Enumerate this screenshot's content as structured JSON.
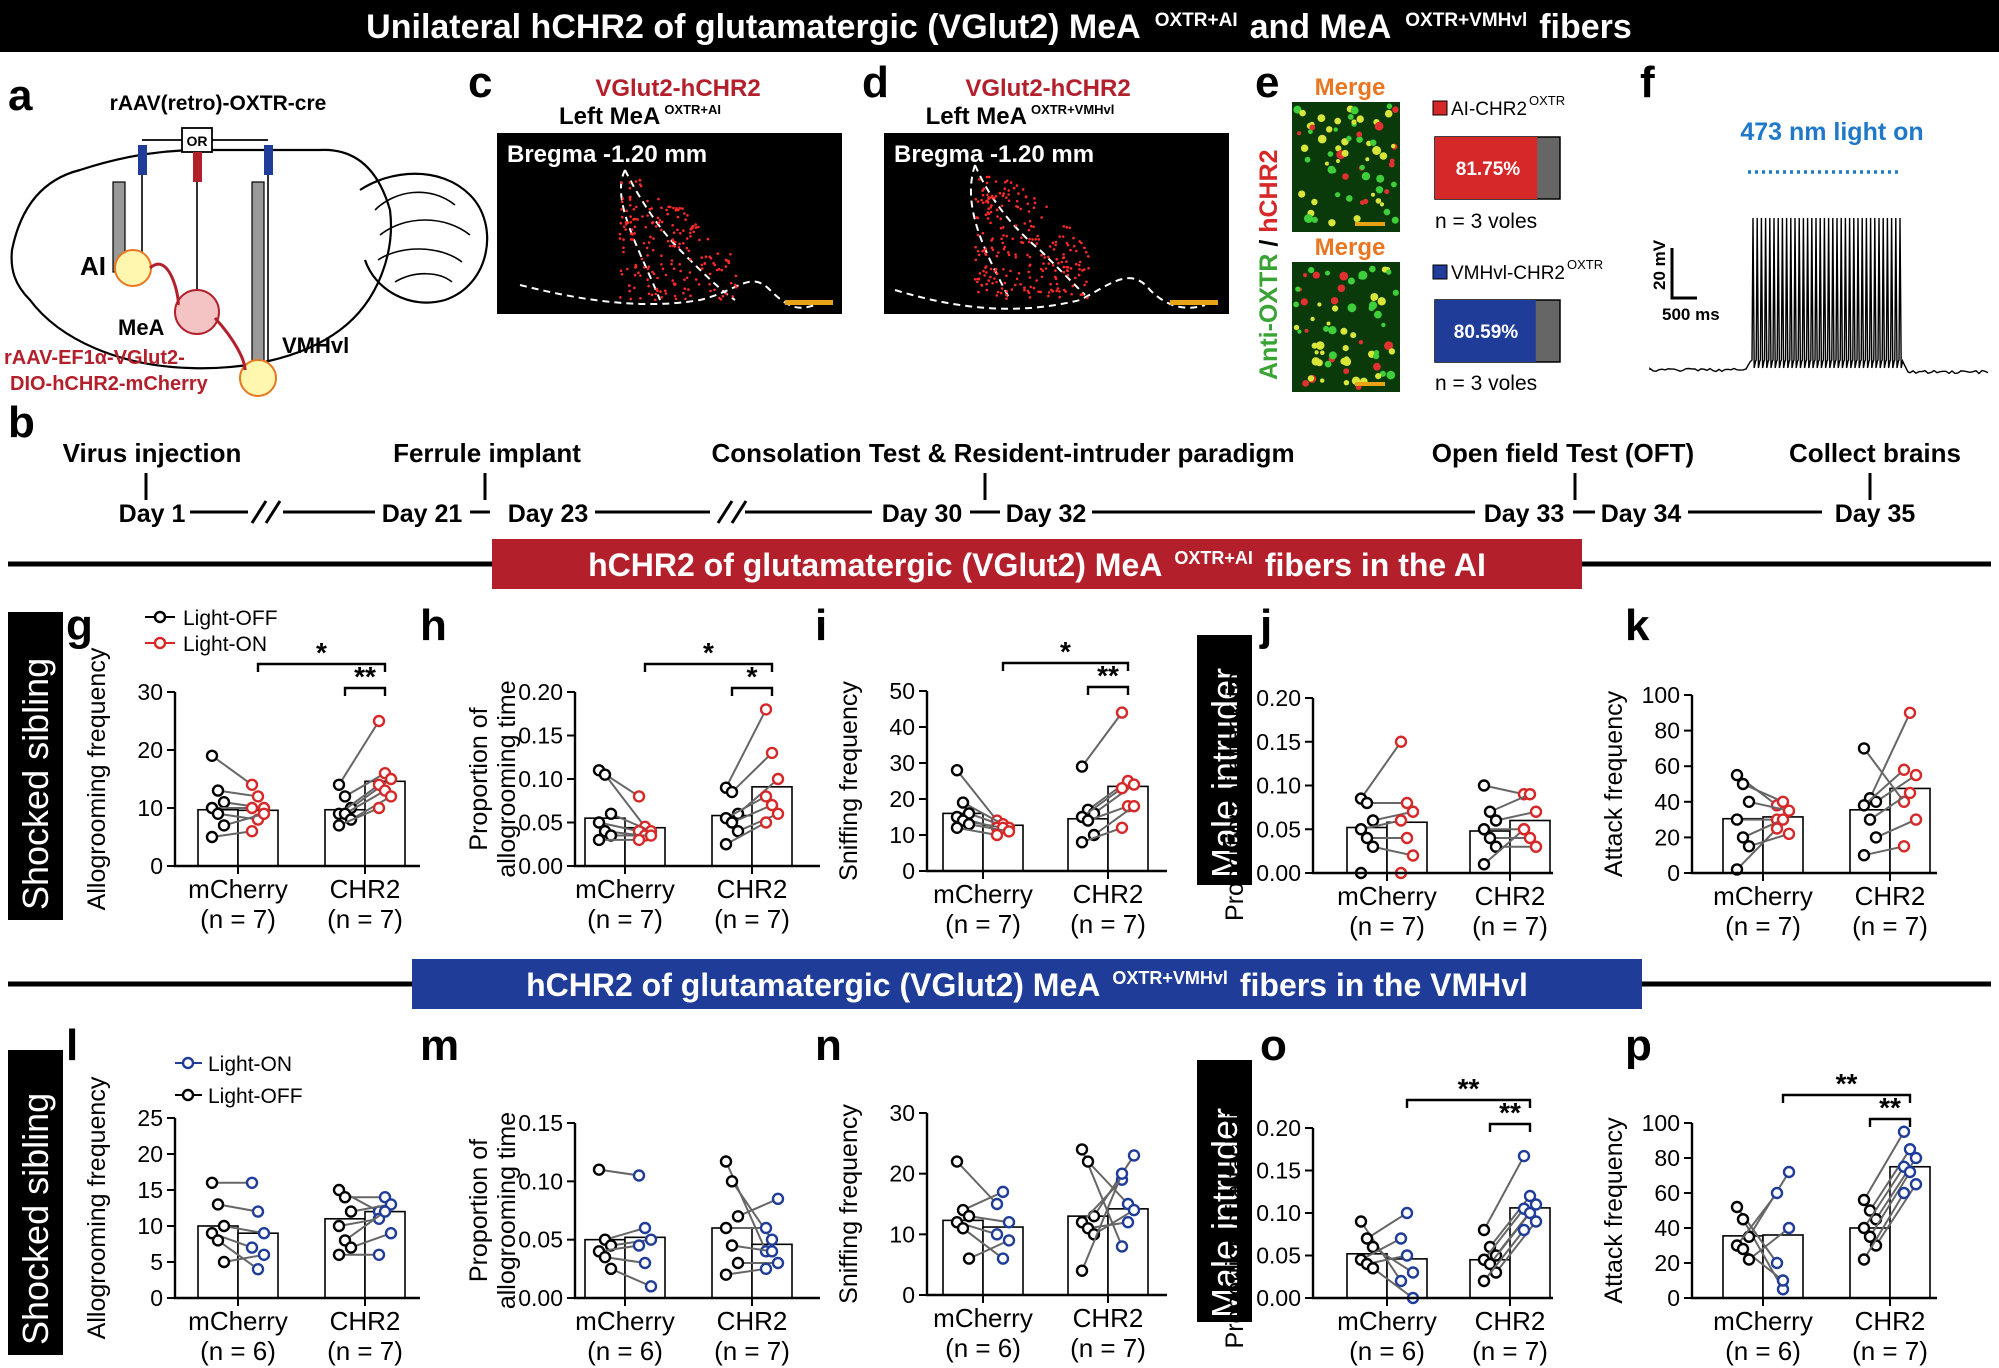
{
  "title": {
    "main": "Unilateral hCHR2 of glutamatergic (VGlut2) MeA",
    "sup1": "OXTR+AI",
    "mid": "and MeA",
    "sup2": "OXTR+VMHvl",
    "end": "fibers"
  },
  "colors": {
    "red": "#d62828",
    "blue": "#1f3c99",
    "dark_red": "#b3202c",
    "yellow": "#e8a317",
    "green": "#3aa335",
    "orange": "#e87722",
    "light_blue": "#1f78c8"
  },
  "panel_a": {
    "letter": "a",
    "virus_top": "rAAV(retro)-OXTR-cre",
    "or": "OR",
    "ai": "AI",
    "mea": "MeA",
    "vmhvl": "VMHvl",
    "virus_bottom_1": "rAAV-EF1α-VGlut2-",
    "virus_bottom_2": "DIO-hCHR2-mCherry"
  },
  "panel_c": {
    "letter": "c",
    "title": "VGlut2-hCHR2",
    "subtitle": "Left MeA",
    "sup": "OXTR+AI",
    "bregma": "Bregma -1.20 mm"
  },
  "panel_d": {
    "letter": "d",
    "title": "VGlut2-hCHR2",
    "subtitle": "Left MeA",
    "sup": "OXTR+VMHvl",
    "bregma": "Bregma -1.20 mm"
  },
  "panel_e": {
    "letter": "e",
    "merge": "Merge",
    "ylabel_green": "Anti-OXTR",
    "ylabel_sep": " / ",
    "ylabel_red": "hCHR2",
    "leg1": "AI-CHR2",
    "leg1_sup": "OXTR",
    "pct1": "81.75%",
    "pct1_value": 81.75,
    "n1": "n = 3 voles",
    "leg2": "VMHvl-CHR2",
    "leg2_sup": "OXTR",
    "pct2": "80.59%",
    "pct2_value": 80.59,
    "n2": "n = 3 voles"
  },
  "panel_f": {
    "letter": "f",
    "light": "473 nm light on",
    "scale_v": "20 mV",
    "scale_t": "500 ms"
  },
  "panel_b": {
    "letter": "b",
    "events": [
      "Virus injection",
      "Ferrule implant",
      "Consolation Test & Resident-intruder paradigm",
      "Open field Test (OFT)",
      "Collect brains"
    ],
    "days": [
      "Day 1",
      "Day 21",
      "Day 23",
      "Day 30",
      "Day 32",
      "Day 33",
      "Day 34",
      "Day 35"
    ]
  },
  "section1": {
    "text": "hCHR2 of glutamatergic (VGlut2) MeA",
    "sup": "OXTR+AI",
    "end": "fibers in the AI"
  },
  "section2": {
    "text": "hCHR2 of glutamatergic (VGlut2) MeA",
    "sup": "OXTR+VMHvl",
    "end": "fibers in the VMHvl"
  },
  "side_labels": {
    "shocked": "Shocked sibling",
    "male": "Male intruder"
  },
  "legend1": {
    "off": "Light-OFF",
    "on": "Light-ON"
  },
  "legend2": {
    "on": "Light-ON",
    "off": "Light-OFF"
  },
  "chart_data": [
    {
      "id": "g",
      "type": "bar",
      "ylabel": "Allogrooming frequency",
      "ylim": [
        0,
        30
      ],
      "yticks": [
        "0",
        "10",
        "20",
        "30"
      ],
      "categories": [
        "mCherry",
        "CHR2"
      ],
      "n_labels": [
        "(n = 7)",
        "(n = 7)"
      ],
      "color": "red",
      "series": [
        {
          "name": "Light-OFF",
          "values": [
            9.7,
            9.7
          ]
        },
        {
          "name": "Light-ON",
          "values": [
            9.6,
            14.6
          ]
        }
      ],
      "pairs": [
        [
          [
            19,
            14
          ],
          [
            13,
            12
          ],
          [
            11,
            10
          ],
          [
            10,
            10
          ],
          [
            9,
            8
          ],
          [
            7,
            9
          ],
          [
            5,
            6
          ]
        ],
        [
          [
            14,
            25
          ],
          [
            12,
            16
          ],
          [
            10,
            15
          ],
          [
            9,
            14
          ],
          [
            9,
            13
          ],
          [
            8,
            12
          ],
          [
            7,
            10
          ]
        ]
      ],
      "sig": [
        {
          "label": "*",
          "level": 1
        },
        {
          "label": "**",
          "level": 0
        }
      ]
    },
    {
      "id": "h",
      "type": "bar",
      "ylabel": "Proportion of allogrooming time",
      "ylim": [
        0,
        0.2
      ],
      "yticks": [
        "0.00",
        "0.05",
        "0.10",
        "0.15",
        "0.20"
      ],
      "categories": [
        "mCherry",
        "CHR2"
      ],
      "n_labels": [
        "(n = 7)",
        "(n = 7)"
      ],
      "color": "red",
      "series": [
        {
          "name": "Light-OFF",
          "values": [
            0.055,
            0.058
          ]
        },
        {
          "name": "Light-ON",
          "values": [
            0.044,
            0.091
          ]
        }
      ],
      "pairs": [
        [
          [
            0.11,
            0.08
          ],
          [
            0.105,
            0.045
          ],
          [
            0.06,
            0.04
          ],
          [
            0.05,
            0.04
          ],
          [
            0.04,
            0.035
          ],
          [
            0.035,
            0.035
          ],
          [
            0.03,
            0.03
          ]
        ],
        [
          [
            0.09,
            0.18
          ],
          [
            0.085,
            0.13
          ],
          [
            0.06,
            0.1
          ],
          [
            0.055,
            0.08
          ],
          [
            0.05,
            0.07
          ],
          [
            0.04,
            0.06
          ],
          [
            0.025,
            0.05
          ]
        ]
      ],
      "sig": [
        {
          "label": "*",
          "level": 1
        },
        {
          "label": "*",
          "level": 0
        }
      ]
    },
    {
      "id": "i",
      "type": "bar",
      "ylabel": "Sniffing frequency",
      "ylim": [
        0,
        50
      ],
      "yticks": [
        "0",
        "10",
        "20",
        "30",
        "40",
        "50"
      ],
      "categories": [
        "mCherry",
        "CHR2"
      ],
      "n_labels": [
        "(n = 7)",
        "(n = 7)"
      ],
      "color": "red",
      "series": [
        {
          "name": "Light-OFF",
          "values": [
            16,
            14.5
          ]
        },
        {
          "name": "Light-ON",
          "values": [
            12.7,
            23.5
          ]
        }
      ],
      "pairs": [
        [
          [
            28,
            14
          ],
          [
            19,
            13
          ],
          [
            16,
            12
          ],
          [
            15,
            12
          ],
          [
            14,
            12
          ],
          [
            13,
            11
          ],
          [
            12,
            10
          ]
        ],
        [
          [
            29,
            44
          ],
          [
            17,
            25
          ],
          [
            16,
            24
          ],
          [
            15,
            23
          ],
          [
            14,
            18
          ],
          [
            10,
            18
          ],
          [
            8,
            12
          ]
        ]
      ],
      "sig": [
        {
          "label": "*",
          "level": 1
        },
        {
          "label": "**",
          "level": 0
        }
      ]
    },
    {
      "id": "j",
      "type": "bar",
      "ylabel": "Proportion of attack time",
      "ylim": [
        0,
        0.2
      ],
      "yticks": [
        "0.00",
        "0.05",
        "0.10",
        "0.15",
        "0.20"
      ],
      "categories": [
        "mCherry",
        "CHR2"
      ],
      "n_labels": [
        "(n = 7)",
        "(n = 7)"
      ],
      "color": "red",
      "series": [
        {
          "name": "Light-OFF",
          "values": [
            0.052,
            0.048
          ]
        },
        {
          "name": "Light-ON",
          "values": [
            0.058,
            0.06
          ]
        }
      ],
      "pairs": [
        [
          [
            0.085,
            0.15
          ],
          [
            0.08,
            0.08
          ],
          [
            0.06,
            0.07
          ],
          [
            0.05,
            0.06
          ],
          [
            0.04,
            0.04
          ],
          [
            0.03,
            0.02
          ],
          [
            0.0,
            0.0
          ]
        ],
        [
          [
            0.1,
            0.09
          ],
          [
            0.07,
            0.09
          ],
          [
            0.06,
            0.07
          ],
          [
            0.05,
            0.05
          ],
          [
            0.04,
            0.04
          ],
          [
            0.03,
            0.03
          ],
          [
            0.01,
            0.05
          ]
        ]
      ],
      "sig": []
    },
    {
      "id": "k",
      "type": "bar",
      "ylabel": "Attack frequency",
      "ylim": [
        0,
        100
      ],
      "yticks": [
        "0",
        "20",
        "40",
        "60",
        "80",
        "100"
      ],
      "categories": [
        "mCherry",
        "CHR2"
      ],
      "n_labels": [
        "(n = 7)",
        "(n = 7)"
      ],
      "color": "red",
      "series": [
        {
          "name": "Light-OFF",
          "values": [
            30.5,
            35.5
          ]
        },
        {
          "name": "Light-ON",
          "values": [
            31.5,
            47.5
          ]
        }
      ],
      "pairs": [
        [
          [
            55,
            38
          ],
          [
            50,
            40
          ],
          [
            40,
            35
          ],
          [
            30,
            30
          ],
          [
            20,
            30
          ],
          [
            15,
            22
          ],
          [
            2,
            25
          ]
        ],
        [
          [
            70,
            40
          ],
          [
            42,
            90
          ],
          [
            40,
            55
          ],
          [
            38,
            58
          ],
          [
            30,
            45
          ],
          [
            20,
            30
          ],
          [
            10,
            15
          ]
        ]
      ],
      "sig": []
    },
    {
      "id": "l",
      "type": "bar",
      "ylabel": "Allogrooming frequency",
      "ylim": [
        0,
        25
      ],
      "yticks": [
        "0",
        "5",
        "10",
        "15",
        "20",
        "25"
      ],
      "categories": [
        "mCherry",
        "CHR2"
      ],
      "n_labels": [
        "(n = 6)",
        "(n = 7)"
      ],
      "color": "blue",
      "series": [
        {
          "name": "Light-OFF",
          "values": [
            10,
            11
          ]
        },
        {
          "name": "Light-ON",
          "values": [
            9,
            12
          ]
        }
      ],
      "pairs": [
        [
          [
            16,
            16
          ],
          [
            13,
            12
          ],
          [
            10,
            9
          ],
          [
            9,
            7
          ],
          [
            8,
            4
          ],
          [
            5,
            6
          ]
        ],
        [
          [
            15,
            12
          ],
          [
            14,
            14
          ],
          [
            12,
            13
          ],
          [
            10,
            11
          ],
          [
            8,
            12
          ],
          [
            7,
            9
          ],
          [
            6,
            6
          ]
        ]
      ],
      "sig": []
    },
    {
      "id": "m",
      "type": "bar",
      "ylabel": "Proportion of allogrooming time",
      "ylim": [
        0,
        0.15
      ],
      "yticks": [
        "0.00",
        "0.05",
        "0.10",
        "0.15"
      ],
      "categories": [
        "mCherry",
        "CHR2"
      ],
      "n_labels": [
        "(n = 6)",
        "(n = 7)"
      ],
      "color": "blue",
      "series": [
        {
          "name": "Light-OFF",
          "values": [
            0.05,
            0.06
          ]
        },
        {
          "name": "Light-ON",
          "values": [
            0.052,
            0.046
          ]
        }
      ],
      "pairs": [
        [
          [
            0.11,
            0.105
          ],
          [
            0.05,
            0.06
          ],
          [
            0.045,
            0.05
          ],
          [
            0.04,
            0.045
          ],
          [
            0.035,
            0.03
          ],
          [
            0.025,
            0.01
          ]
        ],
        [
          [
            0.117,
            0.04
          ],
          [
            0.1,
            0.05
          ],
          [
            0.07,
            0.085
          ],
          [
            0.06,
            0.06
          ],
          [
            0.045,
            0.04
          ],
          [
            0.03,
            0.03
          ],
          [
            0.02,
            0.025
          ]
        ]
      ],
      "sig": []
    },
    {
      "id": "n",
      "type": "bar",
      "ylabel": "Sniffing frequency",
      "ylim": [
        0,
        30
      ],
      "yticks": [
        "0",
        "10",
        "20",
        "30"
      ],
      "categories": [
        "mCherry",
        "CHR2"
      ],
      "n_labels": [
        "(n = 6)",
        "(n = 7)"
      ],
      "color": "blue",
      "series": [
        {
          "name": "Light-OFF",
          "values": [
            12.3,
            13
          ]
        },
        {
          "name": "Light-ON",
          "values": [
            11.2,
            14.2
          ]
        }
      ],
      "pairs": [
        [
          [
            22,
            15
          ],
          [
            14,
            17
          ],
          [
            13,
            12
          ],
          [
            12,
            10
          ],
          [
            11,
            6
          ],
          [
            6,
            9
          ]
        ],
        [
          [
            24,
            8
          ],
          [
            22,
            15
          ],
          [
            13,
            23
          ],
          [
            12,
            19
          ],
          [
            11,
            12
          ],
          [
            10,
            14
          ],
          [
            4,
            20
          ]
        ]
      ],
      "sig": []
    },
    {
      "id": "o",
      "type": "bar",
      "ylabel": "Proportion of attack time",
      "ylim": [
        0,
        0.2
      ],
      "yticks": [
        "0.00",
        "0.05",
        "0.10",
        "0.15",
        "0.20"
      ],
      "categories": [
        "mCherry",
        "CHR2"
      ],
      "n_labels": [
        "(n = 6)",
        "(n = 7)"
      ],
      "color": "blue",
      "series": [
        {
          "name": "Light-OFF",
          "values": [
            0.052,
            0.045
          ]
        },
        {
          "name": "Light-ON",
          "values": [
            0.046,
            0.106
          ]
        }
      ],
      "pairs": [
        [
          [
            0.09,
            0.02
          ],
          [
            0.07,
            0.1
          ],
          [
            0.06,
            0.03
          ],
          [
            0.045,
            0.07
          ],
          [
            0.04,
            0.05
          ],
          [
            0.035,
            0.0
          ]
        ],
        [
          [
            0.08,
            0.167
          ],
          [
            0.06,
            0.12
          ],
          [
            0.05,
            0.11
          ],
          [
            0.045,
            0.105
          ],
          [
            0.04,
            0.1
          ],
          [
            0.03,
            0.09
          ],
          [
            0.02,
            0.08
          ]
        ]
      ],
      "sig": [
        {
          "label": "**",
          "level": 1
        },
        {
          "label": "**",
          "level": 0
        }
      ]
    },
    {
      "id": "p",
      "type": "bar",
      "ylabel": "Attack frequency",
      "ylim": [
        0,
        100
      ],
      "yticks": [
        "0",
        "20",
        "40",
        "60",
        "80",
        "100"
      ],
      "categories": [
        "mCherry",
        "CHR2"
      ],
      "n_labels": [
        "(n = 6)",
        "(n = 7)"
      ],
      "color": "blue",
      "series": [
        {
          "name": "Light-OFF",
          "values": [
            35.5,
            40
          ]
        },
        {
          "name": "Light-ON",
          "values": [
            36,
            75
          ]
        }
      ],
      "pairs": [
        [
          [
            52,
            20
          ],
          [
            45,
            5
          ],
          [
            35,
            72
          ],
          [
            30,
            60
          ],
          [
            28,
            10
          ],
          [
            22,
            40
          ]
        ],
        [
          [
            56,
            95
          ],
          [
            50,
            85
          ],
          [
            45,
            80
          ],
          [
            40,
            75
          ],
          [
            35,
            72
          ],
          [
            30,
            65
          ],
          [
            22,
            60
          ]
        ]
      ],
      "sig": [
        {
          "label": "**",
          "level": 1
        },
        {
          "label": "**",
          "level": 0
        }
      ]
    }
  ]
}
